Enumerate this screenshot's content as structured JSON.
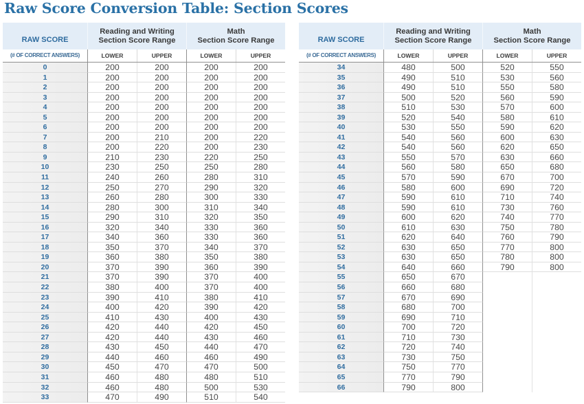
{
  "title": "Raw Score Conversion Table: Section Scores",
  "colors": {
    "title": "#2a71a6",
    "header_bg": "#e3edf7",
    "raw_score_text": "#2f6c9f",
    "raw_score_bg": "#eeeeee",
    "value_text": "#474747"
  },
  "headers": {
    "raw_score": "RAW SCORE",
    "raw_score_sub": "(# OF CORRECT ANSWERS)",
    "rw_line1": "Reading and Writing",
    "rw_line2": "Section Score Range",
    "math_line1": "Math",
    "math_line2": "Section Score Range",
    "lower": "LOWER",
    "upper": "UPPER"
  },
  "tables": [
    {
      "rows": [
        {
          "raw": "0",
          "rw_lower": "200",
          "rw_upper": "200",
          "math_lower": "200",
          "math_upper": "200"
        },
        {
          "raw": "1",
          "rw_lower": "200",
          "rw_upper": "200",
          "math_lower": "200",
          "math_upper": "200"
        },
        {
          "raw": "2",
          "rw_lower": "200",
          "rw_upper": "200",
          "math_lower": "200",
          "math_upper": "200"
        },
        {
          "raw": "3",
          "rw_lower": "200",
          "rw_upper": "200",
          "math_lower": "200",
          "math_upper": "200"
        },
        {
          "raw": "4",
          "rw_lower": "200",
          "rw_upper": "200",
          "math_lower": "200",
          "math_upper": "200"
        },
        {
          "raw": "5",
          "rw_lower": "200",
          "rw_upper": "200",
          "math_lower": "200",
          "math_upper": "200"
        },
        {
          "raw": "6",
          "rw_lower": "200",
          "rw_upper": "200",
          "math_lower": "200",
          "math_upper": "200"
        },
        {
          "raw": "7",
          "rw_lower": "200",
          "rw_upper": "210",
          "math_lower": "200",
          "math_upper": "220"
        },
        {
          "raw": "8",
          "rw_lower": "200",
          "rw_upper": "220",
          "math_lower": "200",
          "math_upper": "230"
        },
        {
          "raw": "9",
          "rw_lower": "210",
          "rw_upper": "230",
          "math_lower": "220",
          "math_upper": "250"
        },
        {
          "raw": "10",
          "rw_lower": "230",
          "rw_upper": "250",
          "math_lower": "250",
          "math_upper": "280"
        },
        {
          "raw": "11",
          "rw_lower": "240",
          "rw_upper": "260",
          "math_lower": "280",
          "math_upper": "310"
        },
        {
          "raw": "12",
          "rw_lower": "250",
          "rw_upper": "270",
          "math_lower": "290",
          "math_upper": "320"
        },
        {
          "raw": "13",
          "rw_lower": "260",
          "rw_upper": "280",
          "math_lower": "300",
          "math_upper": "330"
        },
        {
          "raw": "14",
          "rw_lower": "280",
          "rw_upper": "300",
          "math_lower": "310",
          "math_upper": "340"
        },
        {
          "raw": "15",
          "rw_lower": "290",
          "rw_upper": "310",
          "math_lower": "320",
          "math_upper": "350"
        },
        {
          "raw": "16",
          "rw_lower": "320",
          "rw_upper": "340",
          "math_lower": "330",
          "math_upper": "360"
        },
        {
          "raw": "17",
          "rw_lower": "340",
          "rw_upper": "360",
          "math_lower": "330",
          "math_upper": "360"
        },
        {
          "raw": "18",
          "rw_lower": "350",
          "rw_upper": "370",
          "math_lower": "340",
          "math_upper": "370"
        },
        {
          "raw": "19",
          "rw_lower": "360",
          "rw_upper": "380",
          "math_lower": "350",
          "math_upper": "380"
        },
        {
          "raw": "20",
          "rw_lower": "370",
          "rw_upper": "390",
          "math_lower": "360",
          "math_upper": "390"
        },
        {
          "raw": "21",
          "rw_lower": "370",
          "rw_upper": "390",
          "math_lower": "370",
          "math_upper": "400"
        },
        {
          "raw": "22",
          "rw_lower": "380",
          "rw_upper": "400",
          "math_lower": "370",
          "math_upper": "400"
        },
        {
          "raw": "23",
          "rw_lower": "390",
          "rw_upper": "410",
          "math_lower": "380",
          "math_upper": "410"
        },
        {
          "raw": "24",
          "rw_lower": "400",
          "rw_upper": "420",
          "math_lower": "390",
          "math_upper": "420"
        },
        {
          "raw": "25",
          "rw_lower": "410",
          "rw_upper": "430",
          "math_lower": "400",
          "math_upper": "430"
        },
        {
          "raw": "26",
          "rw_lower": "420",
          "rw_upper": "440",
          "math_lower": "420",
          "math_upper": "450"
        },
        {
          "raw": "27",
          "rw_lower": "420",
          "rw_upper": "440",
          "math_lower": "430",
          "math_upper": "460"
        },
        {
          "raw": "28",
          "rw_lower": "430",
          "rw_upper": "450",
          "math_lower": "440",
          "math_upper": "470"
        },
        {
          "raw": "29",
          "rw_lower": "440",
          "rw_upper": "460",
          "math_lower": "460",
          "math_upper": "490"
        },
        {
          "raw": "30",
          "rw_lower": "450",
          "rw_upper": "470",
          "math_lower": "470",
          "math_upper": "500"
        },
        {
          "raw": "31",
          "rw_lower": "460",
          "rw_upper": "480",
          "math_lower": "480",
          "math_upper": "510"
        },
        {
          "raw": "32",
          "rw_lower": "460",
          "rw_upper": "480",
          "math_lower": "500",
          "math_upper": "530"
        },
        {
          "raw": "33",
          "rw_lower": "470",
          "rw_upper": "490",
          "math_lower": "510",
          "math_upper": "540"
        }
      ]
    },
    {
      "rows": [
        {
          "raw": "34",
          "rw_lower": "480",
          "rw_upper": "500",
          "math_lower": "520",
          "math_upper": "550"
        },
        {
          "raw": "35",
          "rw_lower": "490",
          "rw_upper": "510",
          "math_lower": "530",
          "math_upper": "560"
        },
        {
          "raw": "36",
          "rw_lower": "490",
          "rw_upper": "510",
          "math_lower": "550",
          "math_upper": "580"
        },
        {
          "raw": "37",
          "rw_lower": "500",
          "rw_upper": "520",
          "math_lower": "560",
          "math_upper": "590"
        },
        {
          "raw": "38",
          "rw_lower": "510",
          "rw_upper": "530",
          "math_lower": "570",
          "math_upper": "600"
        },
        {
          "raw": "39",
          "rw_lower": "520",
          "rw_upper": "540",
          "math_lower": "580",
          "math_upper": "610"
        },
        {
          "raw": "40",
          "rw_lower": "530",
          "rw_upper": "550",
          "math_lower": "590",
          "math_upper": "620"
        },
        {
          "raw": "41",
          "rw_lower": "540",
          "rw_upper": "560",
          "math_lower": "600",
          "math_upper": "630"
        },
        {
          "raw": "42",
          "rw_lower": "540",
          "rw_upper": "560",
          "math_lower": "620",
          "math_upper": "650"
        },
        {
          "raw": "43",
          "rw_lower": "550",
          "rw_upper": "570",
          "math_lower": "630",
          "math_upper": "660"
        },
        {
          "raw": "44",
          "rw_lower": "560",
          "rw_upper": "580",
          "math_lower": "650",
          "math_upper": "680"
        },
        {
          "raw": "45",
          "rw_lower": "570",
          "rw_upper": "590",
          "math_lower": "670",
          "math_upper": "700"
        },
        {
          "raw": "46",
          "rw_lower": "580",
          "rw_upper": "600",
          "math_lower": "690",
          "math_upper": "720"
        },
        {
          "raw": "47",
          "rw_lower": "590",
          "rw_upper": "610",
          "math_lower": "710",
          "math_upper": "740"
        },
        {
          "raw": "48",
          "rw_lower": "590",
          "rw_upper": "610",
          "math_lower": "730",
          "math_upper": "760"
        },
        {
          "raw": "49",
          "rw_lower": "600",
          "rw_upper": "620",
          "math_lower": "740",
          "math_upper": "770"
        },
        {
          "raw": "50",
          "rw_lower": "610",
          "rw_upper": "630",
          "math_lower": "750",
          "math_upper": "780"
        },
        {
          "raw": "51",
          "rw_lower": "620",
          "rw_upper": "640",
          "math_lower": "760",
          "math_upper": "790"
        },
        {
          "raw": "52",
          "rw_lower": "630",
          "rw_upper": "650",
          "math_lower": "770",
          "math_upper": "800"
        },
        {
          "raw": "53",
          "rw_lower": "630",
          "rw_upper": "650",
          "math_lower": "780",
          "math_upper": "800"
        },
        {
          "raw": "54",
          "rw_lower": "640",
          "rw_upper": "660",
          "math_lower": "790",
          "math_upper": "800"
        },
        {
          "raw": "55",
          "rw_lower": "650",
          "rw_upper": "670",
          "math_lower": null,
          "math_upper": null
        },
        {
          "raw": "56",
          "rw_lower": "660",
          "rw_upper": "680",
          "math_lower": null,
          "math_upper": null
        },
        {
          "raw": "57",
          "rw_lower": "670",
          "rw_upper": "690",
          "math_lower": null,
          "math_upper": null
        },
        {
          "raw": "58",
          "rw_lower": "680",
          "rw_upper": "700",
          "math_lower": null,
          "math_upper": null
        },
        {
          "raw": "59",
          "rw_lower": "690",
          "rw_upper": "710",
          "math_lower": null,
          "math_upper": null
        },
        {
          "raw": "60",
          "rw_lower": "700",
          "rw_upper": "720",
          "math_lower": null,
          "math_upper": null
        },
        {
          "raw": "61",
          "rw_lower": "710",
          "rw_upper": "730",
          "math_lower": null,
          "math_upper": null
        },
        {
          "raw": "62",
          "rw_lower": "720",
          "rw_upper": "740",
          "math_lower": null,
          "math_upper": null
        },
        {
          "raw": "63",
          "rw_lower": "730",
          "rw_upper": "750",
          "math_lower": null,
          "math_upper": null
        },
        {
          "raw": "64",
          "rw_lower": "750",
          "rw_upper": "770",
          "math_lower": null,
          "math_upper": null
        },
        {
          "raw": "65",
          "rw_lower": "770",
          "rw_upper": "790",
          "math_lower": null,
          "math_upper": null
        },
        {
          "raw": "66",
          "rw_lower": "790",
          "rw_upper": "800",
          "math_lower": null,
          "math_upper": null
        }
      ]
    }
  ]
}
